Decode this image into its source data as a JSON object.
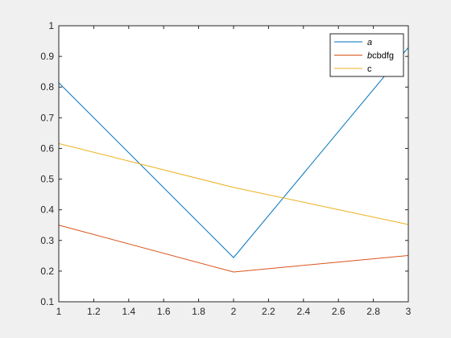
{
  "chart_data": {
    "type": "line",
    "x": [
      1,
      2,
      3
    ],
    "xlim": [
      1,
      3
    ],
    "ylim": [
      0.1,
      1
    ],
    "xticks": [
      "1",
      "1.2",
      "1.4",
      "1.6",
      "1.8",
      "2",
      "2.2",
      "2.4",
      "2.6",
      "2.8",
      "3"
    ],
    "yticks": [
      "0.1",
      "0.2",
      "0.3",
      "0.4",
      "0.5",
      "0.6",
      "0.7",
      "0.8",
      "0.9",
      "1"
    ],
    "grid": false,
    "legend_position": "top-right",
    "series": [
      {
        "name": "a",
        "name_italic": "a",
        "name_rest": "",
        "color": "#0072BD",
        "values": [
          0.814,
          0.244,
          0.929
        ]
      },
      {
        "name": "bcbdfg",
        "name_italic": "b",
        "name_rest": "cbdfg",
        "color": "#D95319",
        "values": [
          0.35,
          0.197,
          0.251
        ]
      },
      {
        "name": "c",
        "name_italic": "",
        "name_rest": "c",
        "color": "#EDB120",
        "values": [
          0.616,
          0.473,
          0.352
        ]
      }
    ]
  }
}
